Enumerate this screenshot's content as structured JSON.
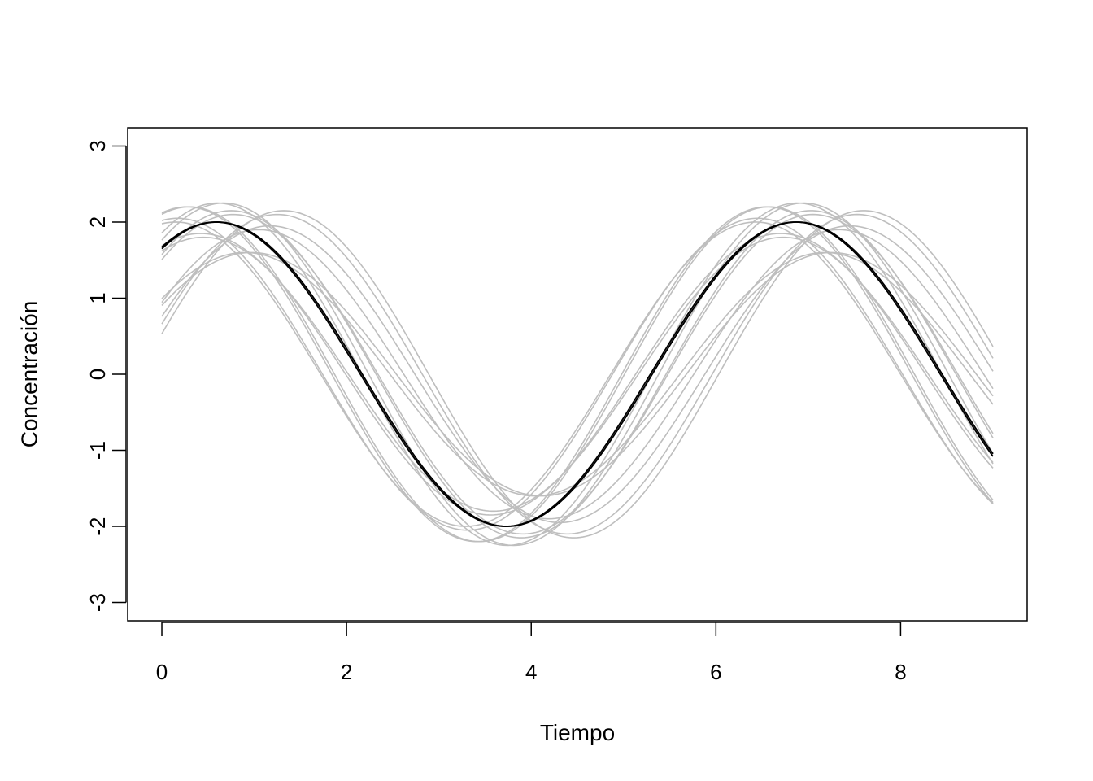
{
  "chart_data": {
    "type": "line",
    "title": "",
    "xlabel": "Tiempo",
    "ylabel": "Concentración",
    "xlim": [
      -0.37,
      9.37
    ],
    "ylim": [
      -3.24,
      3.24
    ],
    "x_ticks": [
      0,
      2,
      4,
      6,
      8
    ],
    "x_tick_labels": [
      "0",
      "2",
      "4",
      "6",
      "8"
    ],
    "y_ticks": [
      -3,
      -2,
      -1,
      0,
      1,
      2,
      3
    ],
    "y_tick_labels": [
      "-3",
      "-2",
      "-1",
      "0",
      "1",
      "2",
      "3"
    ],
    "grid": false,
    "legend": "none",
    "x_range": [
      0,
      9
    ],
    "colors": {
      "samples": "#bebebe",
      "mean": "#000000",
      "frame": "#000000"
    },
    "description_of_curves": "Sinusoidal concentration curves: two families of gray replicate curves with a black reference curve each",
    "series": [
      {
        "color": "#000000",
        "amplitude": 2.0,
        "period": 6.28,
        "peak_x": 0.58,
        "offset": 0,
        "role": "mean"
      },
      {
        "color": "#000000",
        "amplitude": 2.0,
        "period": 6.28,
        "peak_x": 6.88,
        "offset": 0,
        "role": "mean"
      },
      {
        "color": "#bebebe",
        "amplitude": 2.2,
        "period": 6.28,
        "peak_x": 0.3,
        "offset": 0
      },
      {
        "color": "#bebebe",
        "amplitude": 1.8,
        "period": 6.28,
        "peak_x": 0.45,
        "offset": 0
      },
      {
        "color": "#bebebe",
        "amplitude": 2.15,
        "period": 6.28,
        "peak_x": 0.75,
        "offset": 0
      },
      {
        "color": "#bebebe",
        "amplitude": 1.6,
        "period": 6.28,
        "peak_x": 0.9,
        "offset": 0
      },
      {
        "color": "#bebebe",
        "amplitude": 2.25,
        "period": 6.28,
        "peak_x": 0.6,
        "offset": 0
      },
      {
        "color": "#bebebe",
        "amplitude": 1.9,
        "period": 6.28,
        "peak_x": 1.05,
        "offset": 0
      },
      {
        "color": "#bebebe",
        "amplitude": 2.0,
        "period": 6.28,
        "peak_x": 0.15,
        "offset": 0
      },
      {
        "color": "#bebebe",
        "amplitude": 2.1,
        "period": 6.28,
        "peak_x": 1.25,
        "offset": 0
      },
      {
        "color": "#bebebe",
        "amplitude": 2.2,
        "period": 6.28,
        "peak_x": 6.55,
        "offset": 0
      },
      {
        "color": "#bebebe",
        "amplitude": 1.85,
        "period": 6.28,
        "peak_x": 6.7,
        "offset": 0
      },
      {
        "color": "#bebebe",
        "amplitude": 2.1,
        "period": 6.28,
        "peak_x": 7.05,
        "offset": 0
      },
      {
        "color": "#bebebe",
        "amplitude": 1.6,
        "period": 6.28,
        "peak_x": 7.25,
        "offset": 0
      },
      {
        "color": "#bebebe",
        "amplitude": 2.25,
        "period": 6.28,
        "peak_x": 6.95,
        "offset": 0
      },
      {
        "color": "#bebebe",
        "amplitude": 1.95,
        "period": 6.28,
        "peak_x": 7.45,
        "offset": 0
      },
      {
        "color": "#bebebe",
        "amplitude": 2.05,
        "period": 6.28,
        "peak_x": 6.45,
        "offset": 0
      },
      {
        "color": "#bebebe",
        "amplitude": 2.15,
        "period": 6.28,
        "peak_x": 7.6,
        "offset": 0
      }
    ]
  }
}
